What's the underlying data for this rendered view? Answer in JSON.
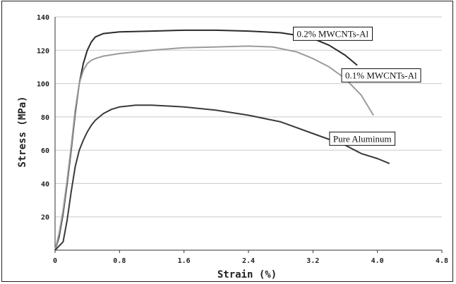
{
  "chart_data": {
    "type": "line",
    "title": "",
    "xlabel": "Strain (%)",
    "ylabel": "Stress (MPa)",
    "xlim": [
      0,
      4.8
    ],
    "ylim": [
      0,
      140
    ],
    "x_ticks": [
      "0",
      "0.8",
      "1.6",
      "2.4",
      "3.2",
      "4.0",
      "4.8"
    ],
    "y_ticks": [
      "20",
      "40",
      "60",
      "80",
      "100",
      "120",
      "140"
    ],
    "grid": "horizontal",
    "legend": "inline labels",
    "series": [
      {
        "name": "0.2% MWCNTs-Al",
        "color": "#2a2a2a",
        "x": [
          0.0,
          0.05,
          0.1,
          0.15,
          0.2,
          0.25,
          0.3,
          0.35,
          0.4,
          0.45,
          0.5,
          0.6,
          0.8,
          1.2,
          1.6,
          2.0,
          2.4,
          2.8,
          3.0,
          3.2,
          3.4,
          3.6,
          3.75
        ],
        "y": [
          0,
          8,
          22,
          40,
          60,
          82,
          100,
          112,
          120,
          125,
          128,
          130,
          131,
          131.5,
          132,
          132,
          131.5,
          130.5,
          129,
          127,
          123,
          117,
          111
        ]
      },
      {
        "name": "0.1% MWCNTs-Al",
        "color": "#9a9a9a",
        "x": [
          0.0,
          0.05,
          0.1,
          0.15,
          0.2,
          0.25,
          0.3,
          0.35,
          0.4,
          0.45,
          0.5,
          0.6,
          0.8,
          1.2,
          1.6,
          2.0,
          2.4,
          2.7,
          3.0,
          3.2,
          3.4,
          3.6,
          3.8,
          3.95
        ],
        "y": [
          0,
          10,
          24,
          42,
          62,
          84,
          100,
          108,
          112,
          114,
          115,
          116.5,
          118,
          120,
          121.5,
          122,
          122.5,
          122,
          119,
          115,
          110,
          103,
          93,
          81
        ]
      },
      {
        "name": "Pure Aluminum",
        "color": "#3a3a3a",
        "x": [
          0.0,
          0.1,
          0.15,
          0.2,
          0.25,
          0.3,
          0.35,
          0.4,
          0.45,
          0.5,
          0.6,
          0.7,
          0.8,
          1.0,
          1.2,
          1.6,
          2.0,
          2.4,
          2.8,
          3.2,
          3.6,
          3.8,
          4.0,
          4.15
        ],
        "y": [
          0,
          5,
          18,
          35,
          50,
          60,
          66,
          71,
          75,
          78,
          82,
          84.5,
          86,
          87,
          87,
          86,
          84,
          81,
          77,
          70,
          63,
          58,
          55,
          52
        ]
      }
    ],
    "annotations": [
      {
        "text": "0.2% MWCNTs-Al",
        "x": 3.0,
        "y": 128,
        "anchor": "0.2% MWCNTs-Al"
      },
      {
        "text": "0.1% MWCNTs-Al",
        "x": 3.6,
        "y": 103,
        "anchor": "0.1% MWCNTs-Al"
      },
      {
        "text": "Pure Aluminum",
        "x": 3.45,
        "y": 65,
        "anchor": "Pure Aluminum"
      }
    ]
  }
}
